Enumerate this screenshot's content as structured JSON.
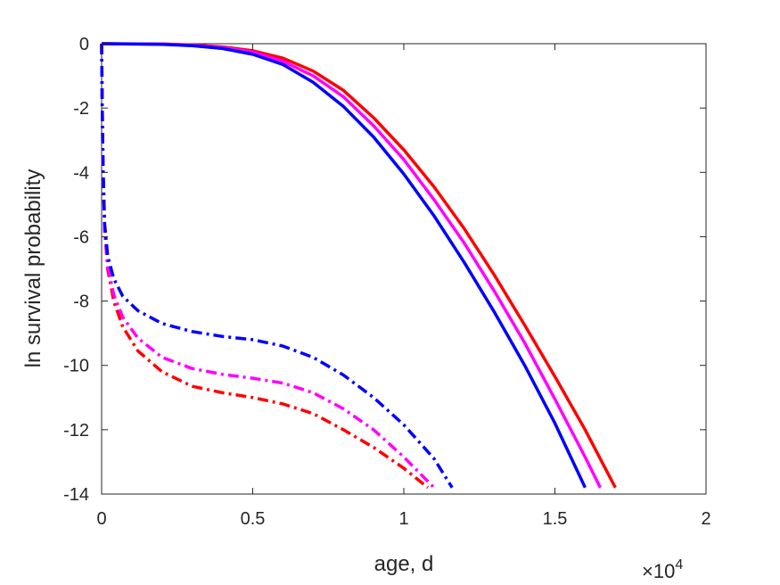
{
  "chart_data": {
    "type": "line",
    "title": "",
    "xlabel": "age, d",
    "ylabel": "ln survival probability",
    "x_multiplier": {
      "base": "×10",
      "exponent": "4"
    },
    "xlim": [
      0,
      20000
    ],
    "ylim": [
      -14,
      0
    ],
    "xticks": [
      0,
      5000,
      10000,
      15000,
      20000
    ],
    "xtick_labels": [
      "0",
      "0.5",
      "1",
      "1.5",
      "2"
    ],
    "yticks": [
      0,
      -2,
      -4,
      -6,
      -8,
      -10,
      -12,
      -14
    ],
    "ytick_labels": [
      "0",
      "-2",
      "-4",
      "-6",
      "-8",
      "-10",
      "-12",
      "-14"
    ],
    "grid": false,
    "legend": "none",
    "series": [
      {
        "color": "#ff0000",
        "style": "solid",
        "points": [
          [
            0,
            0
          ],
          [
            2000,
            -0.01
          ],
          [
            3000,
            -0.04
          ],
          [
            4000,
            -0.1
          ],
          [
            5000,
            -0.22
          ],
          [
            6000,
            -0.45
          ],
          [
            7000,
            -0.85
          ],
          [
            8000,
            -1.45
          ],
          [
            9000,
            -2.3
          ],
          [
            10000,
            -3.3
          ],
          [
            11000,
            -4.45
          ],
          [
            12000,
            -5.75
          ],
          [
            13000,
            -7.2
          ],
          [
            14000,
            -8.75
          ],
          [
            15000,
            -10.35
          ],
          [
            16000,
            -12.0
          ],
          [
            17000,
            -13.8
          ]
        ]
      },
      {
        "color": "#ff00ff",
        "style": "solid",
        "points": [
          [
            0,
            0
          ],
          [
            2000,
            -0.01
          ],
          [
            3000,
            -0.05
          ],
          [
            4000,
            -0.12
          ],
          [
            5000,
            -0.26
          ],
          [
            6000,
            -0.55
          ],
          [
            7000,
            -1.0
          ],
          [
            8000,
            -1.65
          ],
          [
            9000,
            -2.55
          ],
          [
            10000,
            -3.6
          ],
          [
            11000,
            -4.85
          ],
          [
            12000,
            -6.2
          ],
          [
            13000,
            -7.7
          ],
          [
            14000,
            -9.3
          ],
          [
            15000,
            -11.05
          ],
          [
            16000,
            -12.85
          ],
          [
            16500,
            -13.8
          ]
        ]
      },
      {
        "color": "#0000ff",
        "style": "solid",
        "points": [
          [
            0,
            0
          ],
          [
            2000,
            -0.02
          ],
          [
            3000,
            -0.06
          ],
          [
            4000,
            -0.15
          ],
          [
            5000,
            -0.33
          ],
          [
            6000,
            -0.65
          ],
          [
            7000,
            -1.2
          ],
          [
            8000,
            -1.95
          ],
          [
            9000,
            -2.9
          ],
          [
            10000,
            -4.05
          ],
          [
            11000,
            -5.35
          ],
          [
            12000,
            -6.8
          ],
          [
            13000,
            -8.35
          ],
          [
            14000,
            -10.0
          ],
          [
            15000,
            -11.8
          ],
          [
            16000,
            -13.8
          ]
        ]
      },
      {
        "color": "#ff0000",
        "style": "dashdot",
        "points": [
          [
            0,
            0
          ],
          [
            20,
            -2
          ],
          [
            50,
            -4
          ],
          [
            100,
            -5.8
          ],
          [
            200,
            -7
          ],
          [
            400,
            -8
          ],
          [
            700,
            -8.8
          ],
          [
            1200,
            -9.55
          ],
          [
            2000,
            -10.2
          ],
          [
            3000,
            -10.65
          ],
          [
            4000,
            -10.85
          ],
          [
            5000,
            -11.0
          ],
          [
            6000,
            -11.2
          ],
          [
            7000,
            -11.5
          ],
          [
            8000,
            -12.0
          ],
          [
            9000,
            -12.55
          ],
          [
            10000,
            -13.2
          ],
          [
            10800,
            -13.8
          ]
        ]
      },
      {
        "color": "#ff00ff",
        "style": "dashdot",
        "points": [
          [
            0,
            0
          ],
          [
            20,
            -2
          ],
          [
            50,
            -4
          ],
          [
            100,
            -5.8
          ],
          [
            200,
            -6.9
          ],
          [
            400,
            -7.8
          ],
          [
            700,
            -8.5
          ],
          [
            1200,
            -9.15
          ],
          [
            2000,
            -9.75
          ],
          [
            3000,
            -10.1
          ],
          [
            4000,
            -10.28
          ],
          [
            5000,
            -10.4
          ],
          [
            6000,
            -10.55
          ],
          [
            7000,
            -10.85
          ],
          [
            8000,
            -11.35
          ],
          [
            9000,
            -12.0
          ],
          [
            10000,
            -12.85
          ],
          [
            11000,
            -13.8
          ]
        ]
      },
      {
        "color": "#0000ff",
        "style": "dashdot",
        "points": [
          [
            0,
            0
          ],
          [
            20,
            -2
          ],
          [
            50,
            -4
          ],
          [
            100,
            -5.6
          ],
          [
            200,
            -6.6
          ],
          [
            400,
            -7.3
          ],
          [
            700,
            -7.85
          ],
          [
            1200,
            -8.3
          ],
          [
            2000,
            -8.7
          ],
          [
            3000,
            -8.95
          ],
          [
            4000,
            -9.1
          ],
          [
            5000,
            -9.2
          ],
          [
            6000,
            -9.4
          ],
          [
            7000,
            -9.75
          ],
          [
            8000,
            -10.3
          ],
          [
            9000,
            -11.0
          ],
          [
            10000,
            -11.85
          ],
          [
            11000,
            -12.9
          ],
          [
            11600,
            -13.8
          ]
        ]
      }
    ]
  }
}
